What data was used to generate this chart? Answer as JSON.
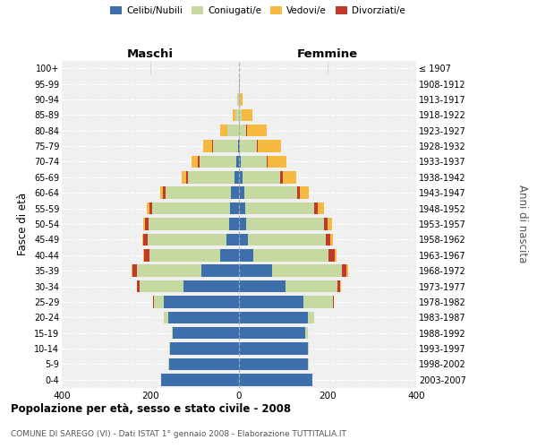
{
  "age_groups": [
    "0-4",
    "5-9",
    "10-14",
    "15-19",
    "20-24",
    "25-29",
    "30-34",
    "35-39",
    "40-44",
    "45-49",
    "50-54",
    "55-59",
    "60-64",
    "65-69",
    "70-74",
    "75-79",
    "80-84",
    "85-89",
    "90-94",
    "95-99",
    "100+"
  ],
  "birth_years": [
    "2003-2007",
    "1998-2002",
    "1993-1997",
    "1988-1992",
    "1983-1987",
    "1978-1982",
    "1973-1977",
    "1968-1972",
    "1963-1967",
    "1958-1962",
    "1953-1957",
    "1948-1952",
    "1943-1947",
    "1938-1942",
    "1933-1937",
    "1928-1932",
    "1923-1927",
    "1918-1922",
    "1913-1917",
    "1908-1912",
    "≤ 1907"
  ],
  "maschi": {
    "celibi": [
      175,
      158,
      155,
      150,
      160,
      170,
      125,
      85,
      42,
      28,
      22,
      20,
      18,
      10,
      6,
      3,
      1,
      1,
      1,
      0,
      0
    ],
    "coniugati": [
      1,
      1,
      2,
      2,
      10,
      22,
      100,
      145,
      160,
      178,
      182,
      175,
      148,
      105,
      82,
      55,
      25,
      8,
      3,
      1,
      0
    ],
    "vedovi": [
      0,
      0,
      0,
      0,
      0,
      0,
      0,
      2,
      2,
      3,
      4,
      5,
      5,
      10,
      15,
      20,
      15,
      5,
      1,
      0,
      0
    ],
    "divorziati": [
      0,
      0,
      0,
      0,
      0,
      2,
      5,
      10,
      12,
      10,
      8,
      8,
      6,
      5,
      4,
      2,
      1,
      0,
      0,
      0,
      0
    ]
  },
  "femmine": {
    "nubili": [
      165,
      155,
      155,
      150,
      155,
      145,
      105,
      75,
      32,
      20,
      16,
      14,
      12,
      8,
      4,
      2,
      1,
      1,
      1,
      0,
      0
    ],
    "coniugate": [
      1,
      2,
      3,
      5,
      15,
      68,
      118,
      158,
      170,
      175,
      175,
      155,
      120,
      85,
      58,
      38,
      16,
      5,
      2,
      1,
      0
    ],
    "vedove": [
      0,
      0,
      0,
      0,
      0,
      0,
      2,
      3,
      4,
      5,
      10,
      14,
      20,
      32,
      42,
      52,
      44,
      24,
      5,
      1,
      0
    ],
    "divorziate": [
      0,
      0,
      0,
      0,
      0,
      2,
      5,
      10,
      15,
      12,
      10,
      8,
      5,
      5,
      3,
      2,
      1,
      0,
      0,
      0,
      0
    ]
  },
  "colors": {
    "celibi_nubili": "#3d6fad",
    "coniugati": "#c5d9a0",
    "vedovi": "#f5b942",
    "divorziati": "#c0392b"
  },
  "xlim": 400,
  "title": "Popolazione per età, sesso e stato civile - 2008",
  "subtitle": "COMUNE DI SAREGO (VI) - Dati ISTAT 1° gennaio 2008 - Elaborazione TUTTITALIA.IT",
  "ylabel_left": "Fasce di età",
  "ylabel_right": "Anni di nascita",
  "xlabel_left": "Maschi",
  "xlabel_right": "Femmine",
  "bg_color": "#f0f0f0",
  "legend_labels": [
    "Celibi/Nubili",
    "Coniugati/e",
    "Vedovi/e",
    "Divorziati/e"
  ]
}
